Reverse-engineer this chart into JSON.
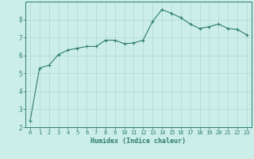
{
  "x": [
    0,
    1,
    2,
    3,
    4,
    5,
    6,
    7,
    8,
    9,
    10,
    11,
    12,
    13,
    14,
    15,
    16,
    17,
    18,
    19,
    20,
    21,
    22,
    23
  ],
  "y": [
    2.35,
    5.3,
    5.45,
    6.05,
    6.3,
    6.4,
    6.5,
    6.5,
    6.85,
    6.85,
    6.65,
    6.7,
    6.85,
    7.9,
    8.55,
    8.35,
    8.1,
    7.75,
    7.5,
    7.6,
    7.75,
    7.5,
    7.45,
    7.15
  ],
  "xlabel": "Humidex (Indice chaleur)",
  "ylim": [
    2,
    9
  ],
  "xlim": [
    -0.5,
    23.5
  ],
  "yticks": [
    2,
    3,
    4,
    5,
    6,
    7,
    8
  ],
  "xticks": [
    0,
    1,
    2,
    3,
    4,
    5,
    6,
    7,
    8,
    9,
    10,
    11,
    12,
    13,
    14,
    15,
    16,
    17,
    18,
    19,
    20,
    21,
    22,
    23
  ],
  "line_color": "#2d7d6e",
  "marker": "+",
  "marker_size": 3,
  "marker_edge_width": 0.8,
  "line_width": 0.8,
  "bg_color": "#cceee8",
  "grid_color": "#b0d8d0",
  "tick_color": "#2d7d6e",
  "label_color": "#2d7d6e",
  "font_family": "monospace",
  "xlabel_fontsize": 6,
  "tick_fontsize": 5,
  "ytick_fontsize": 5.5
}
